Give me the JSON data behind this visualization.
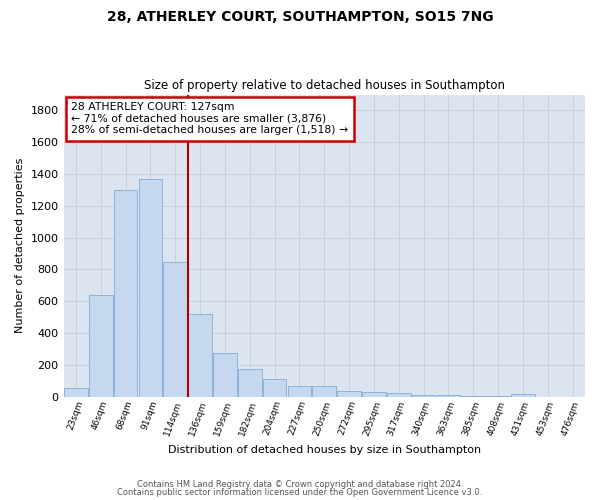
{
  "title": "28, ATHERLEY COURT, SOUTHAMPTON, SO15 7NG",
  "subtitle": "Size of property relative to detached houses in Southampton",
  "xlabel": "Distribution of detached houses by size in Southampton",
  "ylabel": "Number of detached properties",
  "categories": [
    "23sqm",
    "46sqm",
    "68sqm",
    "91sqm",
    "114sqm",
    "136sqm",
    "159sqm",
    "182sqm",
    "204sqm",
    "227sqm",
    "250sqm",
    "272sqm",
    "295sqm",
    "317sqm",
    "340sqm",
    "363sqm",
    "385sqm",
    "408sqm",
    "431sqm",
    "453sqm",
    "476sqm"
  ],
  "values": [
    55,
    640,
    1300,
    1370,
    845,
    520,
    275,
    175,
    108,
    65,
    65,
    35,
    28,
    20,
    12,
    8,
    5,
    3,
    15,
    0,
    0
  ],
  "bar_color": "#c5d8f0",
  "bar_edge_color": "#7fafd4",
  "vline_x": 4.5,
  "vline_color": "#aa0000",
  "annotation_title": "28 ATHERLEY COURT: 127sqm",
  "annotation_line1": "← 71% of detached houses are smaller (3,876)",
  "annotation_line2": "28% of semi-detached houses are larger (1,518) →",
  "annotation_box_color": "#cc0000",
  "ylim": [
    0,
    1900
  ],
  "yticks": [
    0,
    200,
    400,
    600,
    800,
    1000,
    1200,
    1400,
    1600,
    1800
  ],
  "grid_color": "#c8d0e0",
  "bg_color": "#dce4f0",
  "fig_bg_color": "#ffffff",
  "footnote1": "Contains HM Land Registry data © Crown copyright and database right 2024.",
  "footnote2": "Contains public sector information licensed under the Open Government Licence v3.0."
}
